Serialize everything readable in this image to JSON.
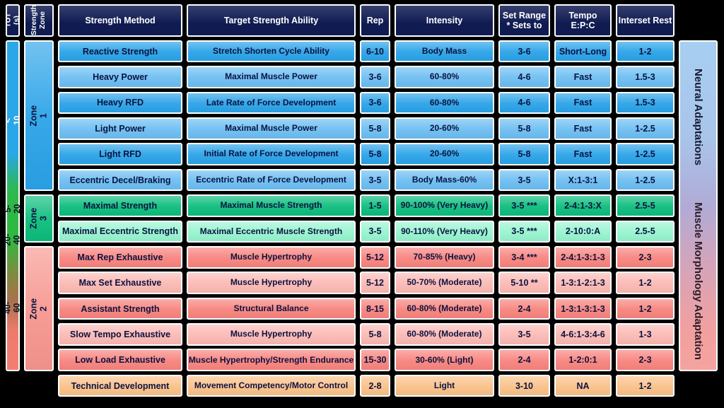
{
  "colors": {
    "background": "#000000",
    "header_navy": "#101b52",
    "header_text": "#ffffff",
    "cell_text": "#0b1340",
    "cell_border": "#ffffff",
    "tones": {
      "blue_dark": "#2aa3e8",
      "blue_light": "#6cbef2",
      "green": "#0cbd7c",
      "mint": "#97f4cf",
      "salmon": "#f8837d",
      "pink": "#fcb9b4",
      "orange": "#fac189",
      "zone_salmon": "#f7968f"
    },
    "tut_gradient": [
      "#2aa7e8",
      "#2db94e",
      "#87873f",
      "#a8724e",
      "#f17f72"
    ],
    "sidebar_gradient": [
      "#a7cff2",
      "#b0abd6",
      "#f5a3a0"
    ]
  },
  "headers": {
    "tut": "TUT (s)",
    "zone": "Strength\nZone",
    "method": "Strength Method",
    "target": "Target Strength Ability",
    "rep": "Rep",
    "intensity": "Intensity",
    "set_range": "Set Range\n* Sets to",
    "tempo": "Tempo\nE:P:C",
    "interset_rest": "Interset Rest"
  },
  "tut_scale": {
    "labels": [
      {
        "text": "< 10",
        "pos": 24,
        "light": true
      },
      {
        "text": "5-20",
        "pos": 51
      },
      {
        "text": "20-40",
        "pos": 60.5
      },
      {
        "text": "40-60",
        "pos": 81
      }
    ]
  },
  "zones": [
    {
      "label": "Zone 1",
      "tone": "blue_dark",
      "rows": [
        1,
        6
      ]
    },
    {
      "label": "Zone 3",
      "tone": "green",
      "rows": [
        7,
        8
      ]
    },
    {
      "label": "Zone 2",
      "tone": "zone_salmon",
      "rows": [
        9,
        13
      ]
    }
  ],
  "sidebar": {
    "top": "Neural Adaptations",
    "bottom": "Muscle Morphology Adaptation"
  },
  "rows": [
    {
      "method": "Reactive Strength",
      "target": "Stretch Shorten Cycle Ability",
      "rep": "6-10",
      "intensity": "Body Mass",
      "set_range": "3-6",
      "tempo": "Short-Long",
      "interset_rest": "1-2",
      "tone": "blue_dark"
    },
    {
      "method": "Heavy Power",
      "target": "Maximal Muscle Power",
      "rep": "3-6",
      "intensity": "60-80%",
      "set_range": "4-6",
      "tempo": "Fast",
      "interset_rest": "1.5-3",
      "tone": "blue_light"
    },
    {
      "method": "Heavy RFD",
      "target": "Late Rate of Force Development",
      "rep": "3-6",
      "intensity": "60-80%",
      "set_range": "4-6",
      "tempo": "Fast",
      "interset_rest": "1.5-3",
      "tone": "blue_dark"
    },
    {
      "method": "Light Power",
      "target": "Maximal Muscle Power",
      "rep": "5-8",
      "intensity": "20-60%",
      "set_range": "5-8",
      "tempo": "Fast",
      "interset_rest": "1-2.5",
      "tone": "blue_light"
    },
    {
      "method": "Light RFD",
      "target": "Initial Rate of Force Development",
      "rep": "5-8",
      "intensity": "20-60%",
      "set_range": "5-8",
      "tempo": "Fast",
      "interset_rest": "1-2.5",
      "tone": "blue_dark"
    },
    {
      "method": "Eccentric Decel/Braking",
      "target": "Eccentric Rate of Force Development",
      "rep": "3-5",
      "intensity": "Body Mass-60%",
      "set_range": "3-5",
      "tempo": "X:1-3:1",
      "interset_rest": "1-2.5",
      "tone": "blue_light"
    },
    {
      "method": "Maximal Strength",
      "target": "Maximal Muscle Strength",
      "rep": "1-5",
      "intensity": "90-100% (Very Heavy)",
      "set_range": "3-5 ***",
      "tempo": "2-4:1-3:X",
      "interset_rest": "2.5-5",
      "tone": "green"
    },
    {
      "method": "Maximal Eccentric Strength",
      "target": "Maximal Eccentric Muscle Strength",
      "rep": "3-5",
      "intensity": "90-110% (Very Heavy)",
      "set_range": "3-5 ***",
      "tempo": "2-10:0:A",
      "interset_rest": "2.5-5",
      "tone": "mint"
    },
    {
      "method": "Max Rep Exhaustive",
      "target": "Muscle Hypertrophy",
      "rep": "5-12",
      "intensity": "70-85% (Heavy)",
      "set_range": "3-4 ***",
      "tempo": "2-4:1-3:1-3",
      "interset_rest": "2-3",
      "tone": "salmon"
    },
    {
      "method": "Max Set Exhaustive",
      "target": "Muscle Hypertrophy",
      "rep": "5-12",
      "intensity": "50-70% (Moderate)",
      "set_range": "5-10 **",
      "tempo": "1-3:1-2:1-3",
      "interset_rest": "1-2",
      "tone": "pink"
    },
    {
      "method": "Assistant Strength",
      "target": "Structural Balance",
      "rep": "8-15",
      "intensity": "60-80% (Moderate)",
      "set_range": "2-4",
      "tempo": "1-3:1-3:1-3",
      "interset_rest": "1-2",
      "tone": "salmon"
    },
    {
      "method": "Slow Tempo Exhaustive",
      "target": "Muscle Hypertrophy",
      "rep": "5-8",
      "intensity": "60-80% (Moderate)",
      "set_range": "3-5",
      "tempo": "4-6:1-3:4-6",
      "interset_rest": "1-3",
      "tone": "pink"
    },
    {
      "method": "Low Load Exhaustive",
      "target": "Muscle Hypertrophy/Strength Endurance",
      "rep": "15-30",
      "intensity": "30-60% (Light)",
      "set_range": "2-4",
      "tempo": "1-2:0:1",
      "interset_rest": "2-3",
      "tone": "salmon"
    },
    {
      "method": "Technical Development",
      "target": "Movement Competency/Motor Control",
      "rep": "2-8",
      "intensity": "Light",
      "set_range": "3-10",
      "tempo": "NA",
      "interset_rest": "1-2",
      "tone": "orange"
    }
  ],
  "chart_data": {
    "type": "table",
    "columns": [
      "TUT (s)",
      "Strength Zone",
      "Strength Method",
      "Target Strength Ability",
      "Rep",
      "Intensity",
      "Set Range * Sets to",
      "Tempo E:P:C",
      "Interset Rest"
    ],
    "tut_scale_ranges": [
      "< 10",
      "5-20",
      "20-40",
      "40-60"
    ],
    "adaptation_labels": [
      "Neural Adaptations",
      "Muscle Morphology Adaptation"
    ],
    "rows": [
      [
        "Zone 1",
        "Reactive Strength",
        "Stretch Shorten Cycle Ability",
        "6-10",
        "Body Mass",
        "3-6",
        "Short-Long",
        "1-2"
      ],
      [
        "Zone 1",
        "Heavy Power",
        "Maximal Muscle Power",
        "3-6",
        "60-80%",
        "4-6",
        "Fast",
        "1.5-3"
      ],
      [
        "Zone 1",
        "Heavy RFD",
        "Late Rate of Force Development",
        "3-6",
        "60-80%",
        "4-6",
        "Fast",
        "1.5-3"
      ],
      [
        "Zone 1",
        "Light Power",
        "Maximal Muscle Power",
        "5-8",
        "20-60%",
        "5-8",
        "Fast",
        "1-2.5"
      ],
      [
        "Zone 1",
        "Light RFD",
        "Initial Rate of Force Development",
        "5-8",
        "20-60%",
        "5-8",
        "Fast",
        "1-2.5"
      ],
      [
        "Zone 1",
        "Eccentric Decel/Braking",
        "Eccentric Rate of Force Development",
        "3-5",
        "Body Mass-60%",
        "3-5",
        "X:1-3:1",
        "1-2.5"
      ],
      [
        "Zone 3",
        "Maximal Strength",
        "Maximal Muscle Strength",
        "1-5",
        "90-100% (Very Heavy)",
        "3-5 ***",
        "2-4:1-3:X",
        "2.5-5"
      ],
      [
        "Zone 3",
        "Maximal Eccentric Strength",
        "Maximal Eccentric Muscle Strength",
        "3-5",
        "90-110% (Very Heavy)",
        "3-5 ***",
        "2-10:0:A",
        "2.5-5"
      ],
      [
        "Zone 2",
        "Max Rep Exhaustive",
        "Muscle Hypertrophy",
        "5-12",
        "70-85% (Heavy)",
        "3-4 ***",
        "2-4:1-3:1-3",
        "2-3"
      ],
      [
        "Zone 2",
        "Max Set Exhaustive",
        "Muscle Hypertrophy",
        "5-12",
        "50-70% (Moderate)",
        "5-10 **",
        "1-3:1-2:1-3",
        "1-2"
      ],
      [
        "Zone 2",
        "Assistant Strength",
        "Structural Balance",
        "8-15",
        "60-80% (Moderate)",
        "2-4",
        "1-3:1-3:1-3",
        "1-2"
      ],
      [
        "Zone 2",
        "Slow Tempo Exhaustive",
        "Muscle Hypertrophy",
        "5-8",
        "60-80% (Moderate)",
        "3-5",
        "4-6:1-3:4-6",
        "1-3"
      ],
      [
        "Zone 2",
        "Low Load Exhaustive",
        "Muscle Hypertrophy/Strength Endurance",
        "15-30",
        "30-60% (Light)",
        "2-4",
        "1-2:0:1",
        "2-3"
      ],
      [
        "",
        "Technical Development",
        "Movement Competency/Motor Control",
        "2-8",
        "Light",
        "3-10",
        "NA",
        "1-2"
      ]
    ]
  }
}
